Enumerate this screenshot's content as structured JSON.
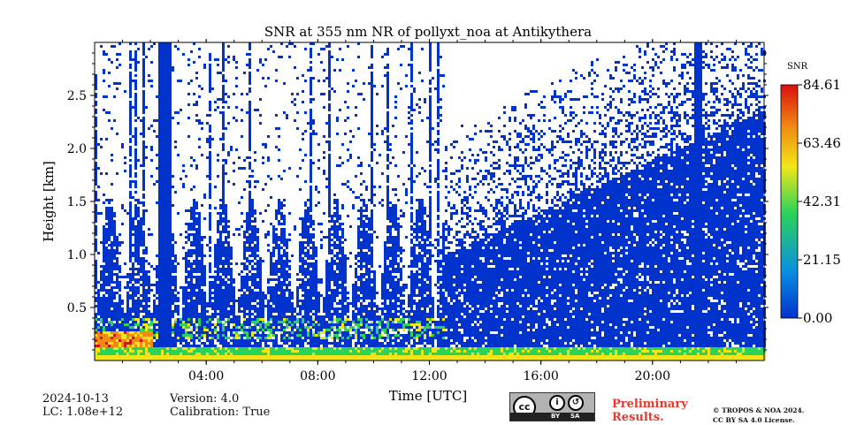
{
  "chart_data": {
    "type": "heatmap",
    "title": "SNR at 355 nm NR of pollyxt_noa at Antikythera",
    "xlabel": "Time [UTC]",
    "ylabel": "Height [km]",
    "xlim": [
      "00:00",
      "24:00"
    ],
    "ylim": [
      0.0,
      3.0
    ],
    "x_ticks": [
      "04:00",
      "08:00",
      "12:00",
      "16:00",
      "20:00"
    ],
    "y_ticks": [
      "0.5",
      "1.0",
      "1.5",
      "2.0",
      "2.5"
    ],
    "colorbar": {
      "label": "SNR",
      "min": 0.0,
      "max": 84.61,
      "ticks": [
        "0.00",
        "21.15",
        "42.31",
        "63.46",
        "84.61"
      ],
      "colormap": [
        "#0033cc",
        "#0a8fe0",
        "#2bd35a",
        "#f2e619",
        "#f08a12",
        "#d91010"
      ]
    },
    "features": [
      {
        "description": "near-ground high SNR layer",
        "height_km": [
          0.0,
          0.15
        ],
        "snr_peak": 50
      },
      {
        "description": "aerosol layer top with elevated SNR",
        "time": [
          "00:00",
          "12:30"
        ],
        "height_km": [
          0.2,
          0.45
        ]
      },
      {
        "description": "low cloud / rain column",
        "time": [
          "02:15",
          "02:45"
        ],
        "height_km": [
          0.0,
          3.0
        ]
      },
      {
        "description": "low cloud / rain column",
        "time": [
          "21:25",
          "21:45"
        ],
        "height_km": [
          0.0,
          3.0
        ]
      },
      {
        "description": "diffuse background signal",
        "time": [
          "12:30",
          "24:00"
        ],
        "height_km": [
          0.15,
          2.2
        ]
      }
    ]
  },
  "footer": {
    "date": "2024-10-13",
    "lc": "LC: 1.08e+12",
    "version": "Version: 4.0",
    "calibration": "Calibration: True",
    "license_badge": {
      "cc": "cc",
      "by": "BY",
      "sa": "SA"
    },
    "preliminary_line1": "Preliminary",
    "preliminary_line2": "Results.",
    "copyright_line1": "© TROPOS & NOA 2024.",
    "copyright_line2": "CC BY SA 4.0 License."
  },
  "colors": {
    "axis": "#000000",
    "background": "#ffffff",
    "preliminary_text": "#e8382e"
  }
}
